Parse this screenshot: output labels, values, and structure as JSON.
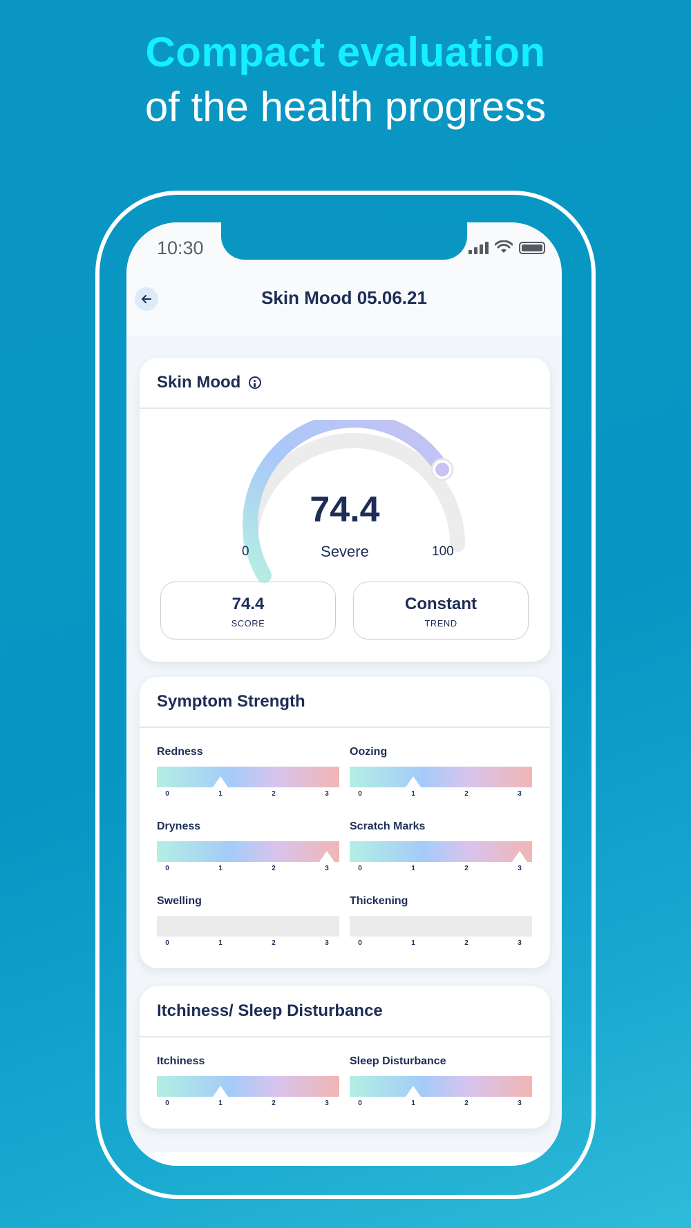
{
  "headline": {
    "accent": "Compact evaluation",
    "subtitle": "of the health progress"
  },
  "status_bar": {
    "time": "10:30"
  },
  "nav": {
    "title": "Skin Mood 05.06.21",
    "back_icon": "arrow-left-icon"
  },
  "skin_mood": {
    "title": "Skin Mood",
    "gauge": {
      "value": "74.4",
      "state": "Severe",
      "min": "0",
      "max": "100",
      "level": 0.744
    },
    "score": {
      "value": "74.4",
      "label": "SCORE"
    },
    "trend": {
      "value": "Constant",
      "label": "TREND"
    }
  },
  "symptom_strength": {
    "title": "Symptom Strength",
    "items": [
      {
        "name": "Redness",
        "level": 1
      },
      {
        "name": "Oozing",
        "level": 1
      },
      {
        "name": "Dryness",
        "level": 3
      },
      {
        "name": "Scratch Marks",
        "level": 3
      },
      {
        "name": "Swelling",
        "level": null
      },
      {
        "name": "Thickening",
        "level": null
      }
    ]
  },
  "itchiness_sleep": {
    "title": "Itchiness/ Sleep Disturbance",
    "items": [
      {
        "name": "Itchiness",
        "level": 1
      },
      {
        "name": "Sleep Disturbance",
        "level": 1
      }
    ]
  },
  "scale": {
    "ticks": [
      "0",
      "1",
      "2",
      "3"
    ],
    "max": 3
  },
  "colors": {
    "background": "#0a97c2",
    "accent": "#15f0ff",
    "text": "#1d2d55"
  }
}
